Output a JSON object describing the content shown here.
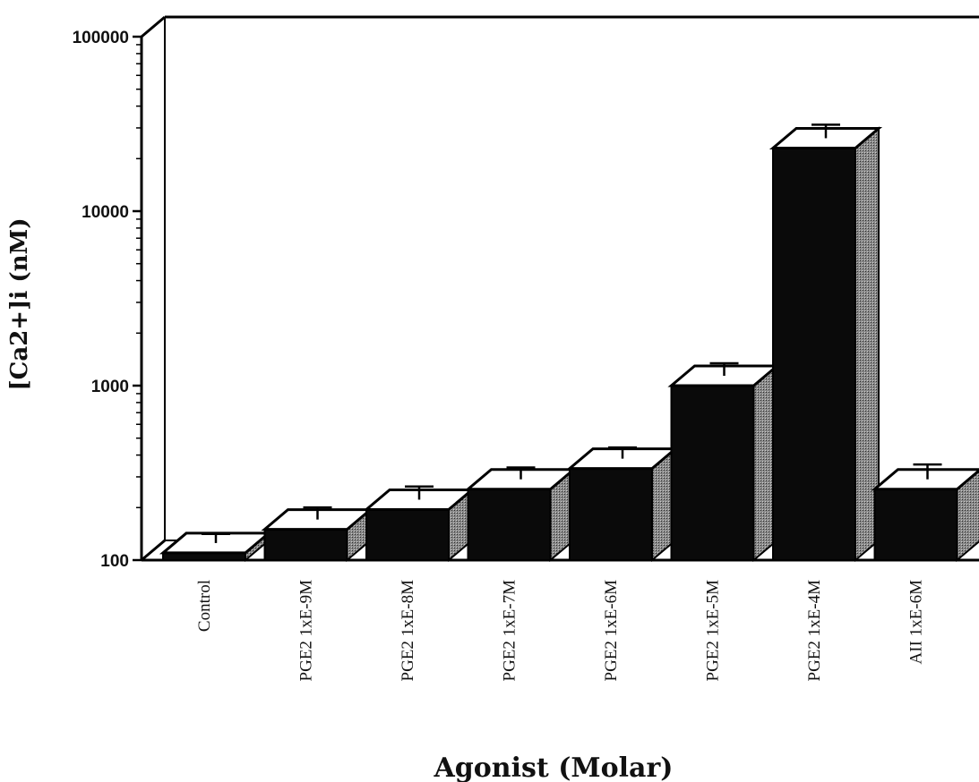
{
  "chart_data": {
    "type": "bar",
    "style": "3d",
    "scale": "log",
    "ylabel": "[Ca2+]i (nM)",
    "xlabel": "Agonist (Molar)",
    "ylim": [
      100,
      100000
    ],
    "yticks": [
      100,
      1000,
      10000,
      100000
    ],
    "ytick_labels": [
      "100",
      "1000",
      "10000",
      "100000"
    ],
    "categories": [
      "Control",
      "PGE2  1xE-9M",
      "PGE2  1xE-8M",
      "PGE2  1xE-7M",
      "PGE2  1xE-6M",
      "PGE2  1xE-5M",
      "PGE2  1xE-4M",
      "AII  1xE-6M"
    ],
    "values": [
      110,
      150,
      195,
      255,
      335,
      1000,
      23000,
      255
    ],
    "error_upper": [
      124,
      176,
      232,
      298,
      388,
      1180,
      27500,
      310
    ],
    "colors": {
      "bar_front": "#0a0a0a",
      "bar_top": "#ffffff",
      "bar_side": "#6a6a6a",
      "axis": "#000000"
    }
  }
}
